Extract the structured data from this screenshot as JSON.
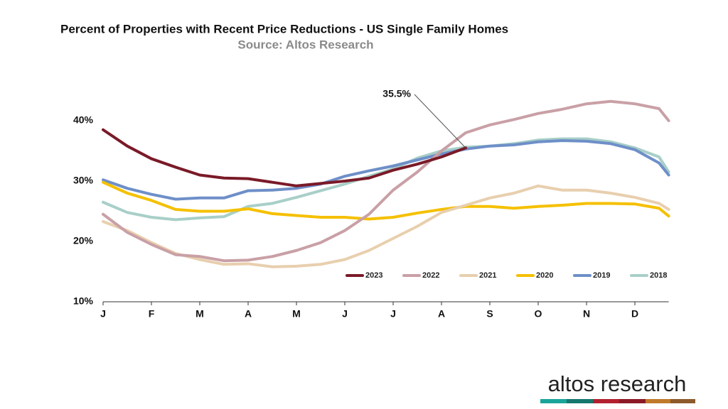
{
  "chart_data": {
    "type": "line",
    "title": "Percent of Properties with Recent Price Reductions - US Single Family Homes",
    "subtitle": "Source: Altos Research",
    "logo": "altos research",
    "x": [
      0,
      0.5,
      1,
      1.5,
      2,
      2.5,
      3,
      3.5,
      4,
      4.5,
      5,
      5.5,
      6,
      6.5,
      7,
      7.5,
      8,
      8.5,
      9,
      9.5,
      10,
      10.5,
      11,
      11.5,
      11.7
    ],
    "xlim": [
      0,
      11.7
    ],
    "xticks": [
      {
        "value": 0,
        "label": "J"
      },
      {
        "value": 1,
        "label": "F"
      },
      {
        "value": 2,
        "label": "M"
      },
      {
        "value": 3,
        "label": "A"
      },
      {
        "value": 4,
        "label": "M"
      },
      {
        "value": 5,
        "label": "J"
      },
      {
        "value": 6,
        "label": "J"
      },
      {
        "value": 7,
        "label": "A"
      },
      {
        "value": 8,
        "label": "S"
      },
      {
        "value": 9,
        "label": "O"
      },
      {
        "value": 10,
        "label": "N"
      },
      {
        "value": 11,
        "label": "D"
      }
    ],
    "ylim": [
      10,
      45
    ],
    "yticks": [
      {
        "value": 10,
        "label": "10%"
      },
      {
        "value": 20,
        "label": "20%"
      },
      {
        "value": 30,
        "label": "30%"
      },
      {
        "value": 40,
        "label": "40%"
      }
    ],
    "grid": false,
    "legend": "bottom-right",
    "series": [
      {
        "name": "2023",
        "color": "#7a1a28",
        "values": [
          38.5,
          35.8,
          33.7,
          32.3,
          31.0,
          30.5,
          30.4,
          29.8,
          29.2,
          29.6,
          30.0,
          30.5,
          31.8,
          32.8,
          34.0,
          35.5,
          null,
          null,
          null,
          null,
          null,
          null,
          null,
          null,
          null
        ]
      },
      {
        "name": "2022",
        "color": "#c9a0a6",
        "values": [
          24.5,
          21.5,
          19.5,
          17.8,
          17.5,
          16.8,
          16.9,
          17.5,
          18.5,
          19.8,
          21.8,
          24.5,
          28.5,
          31.5,
          35.0,
          38.0,
          39.3,
          40.2,
          41.2,
          41.9,
          42.8,
          43.2,
          42.8,
          42.0,
          40.0
        ]
      },
      {
        "name": "2021",
        "color": "#e8cfae",
        "values": [
          23.3,
          21.8,
          19.8,
          18.0,
          17.0,
          16.2,
          16.3,
          15.8,
          15.9,
          16.2,
          17.0,
          18.5,
          20.5,
          22.5,
          24.8,
          26.0,
          27.2,
          28.0,
          29.2,
          28.5,
          28.5,
          28.0,
          27.3,
          26.3,
          25.3
        ]
      },
      {
        "name": "2020",
        "color": "#f5c000",
        "values": [
          29.8,
          28.0,
          26.8,
          25.3,
          25.0,
          25.0,
          25.4,
          24.6,
          24.3,
          24.0,
          24.0,
          23.7,
          24.0,
          24.7,
          25.3,
          25.8,
          25.8,
          25.5,
          25.8,
          26.0,
          26.3,
          26.3,
          26.2,
          25.5,
          24.2
        ]
      },
      {
        "name": "2019",
        "color": "#6e8fc8",
        "values": [
          30.2,
          28.8,
          27.8,
          27.0,
          27.2,
          27.2,
          28.4,
          28.5,
          28.8,
          29.5,
          30.8,
          31.7,
          32.5,
          33.5,
          34.5,
          35.3,
          35.8,
          36.0,
          36.5,
          36.7,
          36.6,
          36.2,
          35.2,
          33.0,
          31.0
        ]
      },
      {
        "name": "2018",
        "color": "#a8cfc8",
        "values": [
          26.5,
          24.8,
          24.0,
          23.6,
          23.9,
          24.1,
          25.8,
          26.3,
          27.3,
          28.4,
          29.5,
          30.8,
          32.0,
          33.8,
          35.0,
          35.6,
          35.8,
          36.2,
          36.8,
          37.0,
          37.0,
          36.5,
          35.5,
          34.0,
          31.5
        ]
      }
    ],
    "annotations": [
      {
        "label": "35.5%",
        "x": 7.5,
        "y": 35.5
      }
    ]
  }
}
